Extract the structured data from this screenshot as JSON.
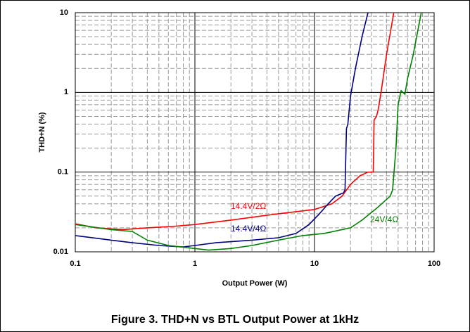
{
  "chart_data": {
    "type": "line",
    "caption": "Figure 3. THD+N vs BTL Output Power at 1kHz",
    "xlabel": "Output Power (W)",
    "ylabel": "THD+N (%)",
    "xscale": "log",
    "yscale": "log",
    "grid": true,
    "xlim": [
      0.1,
      100
    ],
    "ylim": [
      0.01,
      10
    ],
    "xticks": [
      0.1,
      1,
      10,
      100
    ],
    "yticks": [
      0.01,
      0.1,
      1,
      10
    ],
    "series": [
      {
        "name": "14.4V/2Ω",
        "color": "#ff0000",
        "x": [
          0.1,
          0.15,
          0.25,
          0.4,
          0.7,
          1,
          2,
          5,
          10,
          14,
          17,
          20,
          24,
          28,
          31,
          31.5,
          33,
          34,
          36,
          40,
          46
        ],
        "values": [
          0.0225,
          0.02,
          0.019,
          0.02,
          0.021,
          0.022,
          0.025,
          0.03,
          0.034,
          0.04,
          0.05,
          0.07,
          0.09,
          0.1,
          0.1,
          0.45,
          0.5,
          0.6,
          1.0,
          3,
          10
        ]
      },
      {
        "name": "14.4V/4Ω",
        "color": "#000080",
        "x": [
          0.1,
          0.2,
          0.3,
          0.5,
          0.8,
          1,
          1.5,
          3,
          5,
          7,
          9,
          11,
          13,
          15,
          17.5,
          18,
          18.5,
          19,
          20,
          22,
          25,
          28
        ],
        "values": [
          0.016,
          0.014,
          0.013,
          0.012,
          0.0115,
          0.012,
          0.013,
          0.014,
          0.015,
          0.017,
          0.022,
          0.03,
          0.04,
          0.05,
          0.055,
          0.06,
          0.35,
          0.4,
          0.9,
          2,
          5,
          10
        ]
      },
      {
        "name": "24V/4Ω",
        "color": "#008000",
        "x": [
          0.1,
          0.2,
          0.3,
          0.4,
          0.6,
          1,
          1.3,
          2,
          3,
          5,
          8,
          12,
          20,
          25,
          33,
          43,
          45,
          48,
          50,
          53,
          57,
          60,
          67,
          78
        ],
        "values": [
          0.022,
          0.019,
          0.018,
          0.014,
          0.012,
          0.011,
          0.0105,
          0.011,
          0.012,
          0.014,
          0.016,
          0.017,
          0.02,
          0.025,
          0.035,
          0.05,
          0.06,
          0.2,
          0.7,
          1.05,
          0.95,
          1.5,
          3,
          10
        ]
      }
    ]
  }
}
